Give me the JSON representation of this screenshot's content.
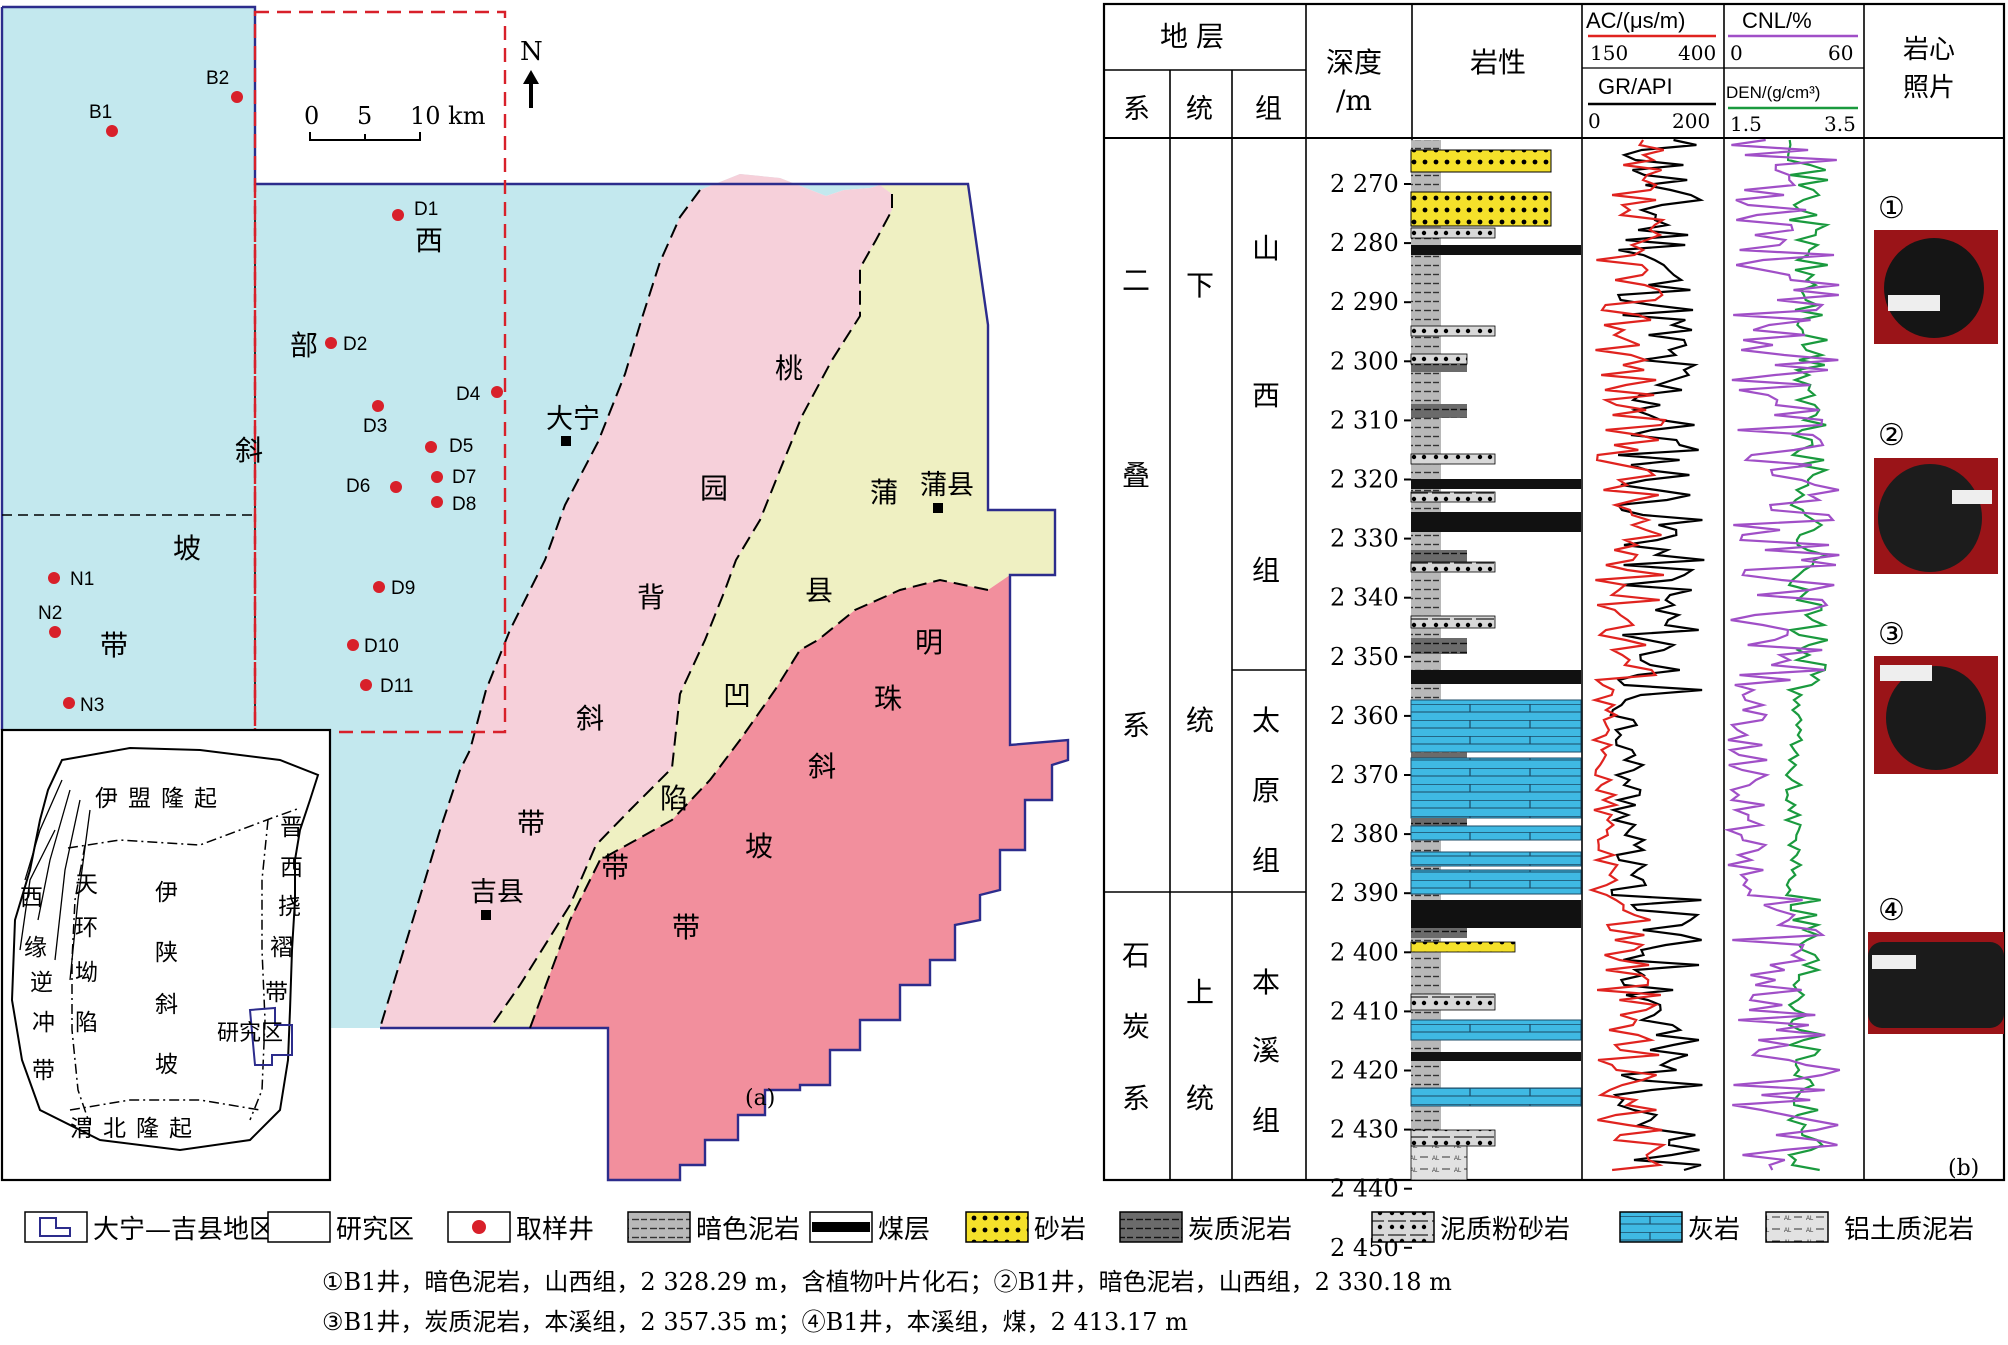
{
  "map": {
    "scale_label": "0   5  10 km",
    "scale_ticks": [
      "0",
      "5",
      "10 km"
    ],
    "north": "N",
    "panel_label": "(a)",
    "zones": {
      "west": [
        "西",
        "部",
        "斜",
        "坡",
        "带"
      ],
      "taoyuan": [
        "桃",
        "园",
        "背",
        "斜",
        "带"
      ],
      "puxian": [
        "蒲",
        "县",
        "凹",
        "陷",
        "带"
      ],
      "mingzhu": [
        "明",
        "珠",
        "斜",
        "坡",
        "带"
      ]
    },
    "cities": [
      {
        "name": "大宁"
      },
      {
        "name": "蒲县"
      },
      {
        "name": "吉县"
      }
    ],
    "wells": [
      {
        "id": "B1"
      },
      {
        "id": "B2"
      },
      {
        "id": "D1"
      },
      {
        "id": "D2"
      },
      {
        "id": "D3"
      },
      {
        "id": "D4"
      },
      {
        "id": "D5"
      },
      {
        "id": "D6"
      },
      {
        "id": "D7"
      },
      {
        "id": "D8"
      },
      {
        "id": "D9"
      },
      {
        "id": "D10"
      },
      {
        "id": "D11"
      },
      {
        "id": "N1"
      },
      {
        "id": "N2"
      },
      {
        "id": "N3"
      }
    ],
    "inset": {
      "top": "伊盟隆起",
      "bottom": "渭北隆起",
      "center": [
        "伊",
        "陕",
        "斜",
        "坡"
      ],
      "left1": [
        "西",
        "缘",
        "逆",
        "冲",
        "带"
      ],
      "left2": [
        "天",
        "环",
        "坳",
        "陷"
      ],
      "right": [
        "晋",
        "西",
        "挠",
        "褶",
        "带"
      ],
      "study": "研究区"
    }
  },
  "column": {
    "header": {
      "strata": "地层",
      "system": "系",
      "series": "统",
      "formation": "组",
      "depth": [
        "深度",
        "/m"
      ],
      "lithology": "岩性",
      "ac": "AC/(μs/m)",
      "ac_range": [
        "150",
        "400"
      ],
      "gr": "GR/API",
      "gr_range": [
        "0",
        "200"
      ],
      "cnl": "CNL/%",
      "cnl_range": [
        "0",
        "60"
      ],
      "den": "DEN/(g/cm³)",
      "den_range": [
        "1.5",
        "3.5"
      ],
      "photo": [
        "岩心",
        "照片"
      ]
    },
    "systems": [
      {
        "chars": [
          "二",
          "叠",
          "系"
        ]
      },
      {
        "chars": [
          "石",
          "炭",
          "系"
        ]
      }
    ],
    "series": [
      {
        "chars": [
          "下",
          "统"
        ]
      },
      {
        "chars": [
          "上",
          "统"
        ]
      }
    ],
    "formations": [
      {
        "chars": [
          "山",
          "西",
          "组"
        ]
      },
      {
        "chars": [
          "太",
          "原",
          "组"
        ]
      },
      {
        "chars": [
          "本",
          "溪",
          "组"
        ]
      }
    ],
    "depth_ticks": [
      "2 270",
      "2 280",
      "2 290",
      "2 300",
      "2 310",
      "2 320",
      "2 330",
      "2 340",
      "2 350",
      "2 360",
      "2 370",
      "2 380",
      "2 390",
      "2 400",
      "2 410",
      "2 420",
      "2 430",
      "2 440",
      "2 450"
    ],
    "photo_labels": [
      "①",
      "②",
      "③",
      "④"
    ],
    "panel_label": "(b)"
  },
  "legend": {
    "items": [
      {
        "label": "大宁—吉县地区"
      },
      {
        "label": "研究区"
      },
      {
        "label": "取样井"
      },
      {
        "label": "暗色泥岩"
      },
      {
        "label": "煤层"
      },
      {
        "label": "砂岩"
      },
      {
        "label": "炭质泥岩"
      },
      {
        "label": "泥质粉砂岩"
      },
      {
        "label": "灰岩"
      },
      {
        "label": "铝土质泥岩"
      }
    ],
    "notes": [
      "①B1井，暗色泥岩，山西组，2 328.29 m，含植物叶片化石；②B1井，暗色泥岩，山西组，2 330.18 m",
      "③B1井，炭质泥岩，本溪组，2 357.35 m；④B1井，本溪组，煤，2 413.17 m"
    ]
  },
  "colors": {
    "west": "#c3e8ee",
    "taoyuan": "#f6d0da",
    "puxian": "#eff0c2",
    "mingzhu": "#f28f9d",
    "border": "#2c2c8c",
    "well": "#d8202a",
    "study": "#d8202a",
    "sand": "#f5e12a",
    "lime": "#3fb9e3",
    "ac": "#e0231f",
    "gr": "#000000",
    "cnl": "#a04fc7",
    "den": "#1a9a3e"
  }
}
